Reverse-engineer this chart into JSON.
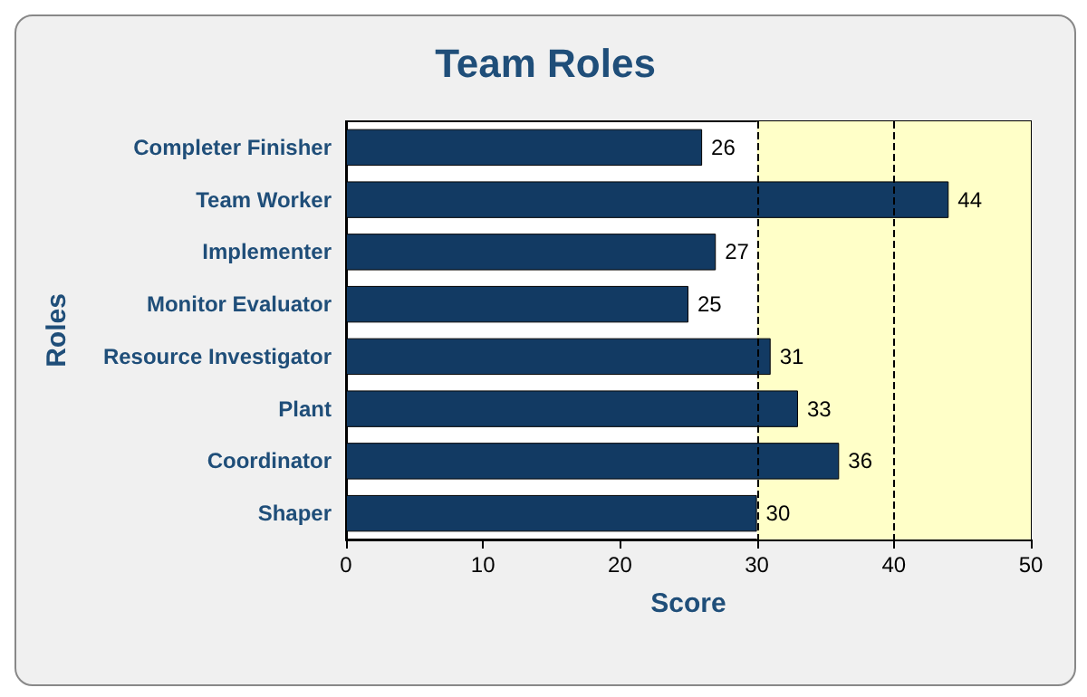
{
  "chart_data": {
    "type": "bar",
    "orientation": "horizontal",
    "title": "Team Roles",
    "xlabel": "Score",
    "ylabel": "Roles",
    "categories": [
      "Completer Finisher",
      "Team Worker",
      "Implementer",
      "Monitor Evaluator",
      "Resource Investigator",
      "Plant",
      "Coordinator",
      "Shaper"
    ],
    "values": [
      26,
      44,
      27,
      25,
      31,
      33,
      36,
      30
    ],
    "color": "#123a63",
    "data_labels": true,
    "xlim": [
      0,
      50
    ],
    "xticks": [
      0,
      10,
      20,
      30,
      40,
      50
    ],
    "grid": false,
    "bands": [
      {
        "axis": "x",
        "from": 30,
        "to": 50,
        "color": "#ffffc8"
      }
    ],
    "ref_lines": [
      {
        "axis": "x",
        "value": 30,
        "line_style": "dashed",
        "color": "#000000"
      },
      {
        "axis": "x",
        "value": 40,
        "line_style": "dashed",
        "color": "#000000"
      }
    ]
  }
}
